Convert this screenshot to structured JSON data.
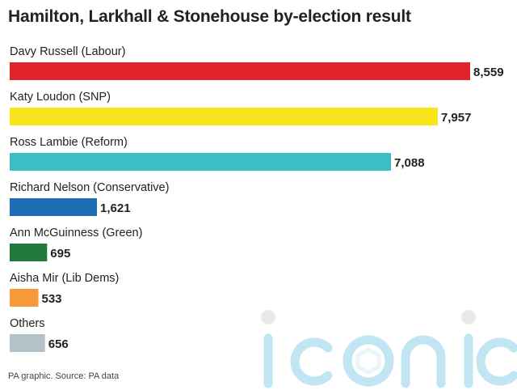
{
  "title": "Hamilton, Larkhall & Stonehouse by-election result",
  "source": "PA graphic. Source: PA data",
  "watermark": "iconic",
  "chart_data": {
    "type": "bar",
    "orientation": "horizontal",
    "title": "Hamilton, Larkhall & Stonehouse by-election result",
    "categories": [
      "Davy Russell (Labour)",
      "Katy Loudon (SNP)",
      "Ross Lambie (Reform)",
      "Richard Nelson (Conservative)",
      "Ann McGuinness (Green)",
      "Aisha Mir (Lib Dems)",
      "Others"
    ],
    "values": [
      8559,
      7957,
      7088,
      1621,
      695,
      533,
      656
    ],
    "value_labels": [
      "8,559",
      "7,957",
      "7,088",
      "1,621",
      "695",
      "533",
      "656"
    ],
    "colors": [
      "#e1242b",
      "#f7e51a",
      "#3cbfc4",
      "#1f6db4",
      "#217a3a",
      "#f79b3a",
      "#b3c1c9"
    ],
    "xlim": [
      0,
      8559
    ],
    "grid": false,
    "legend": "none"
  }
}
